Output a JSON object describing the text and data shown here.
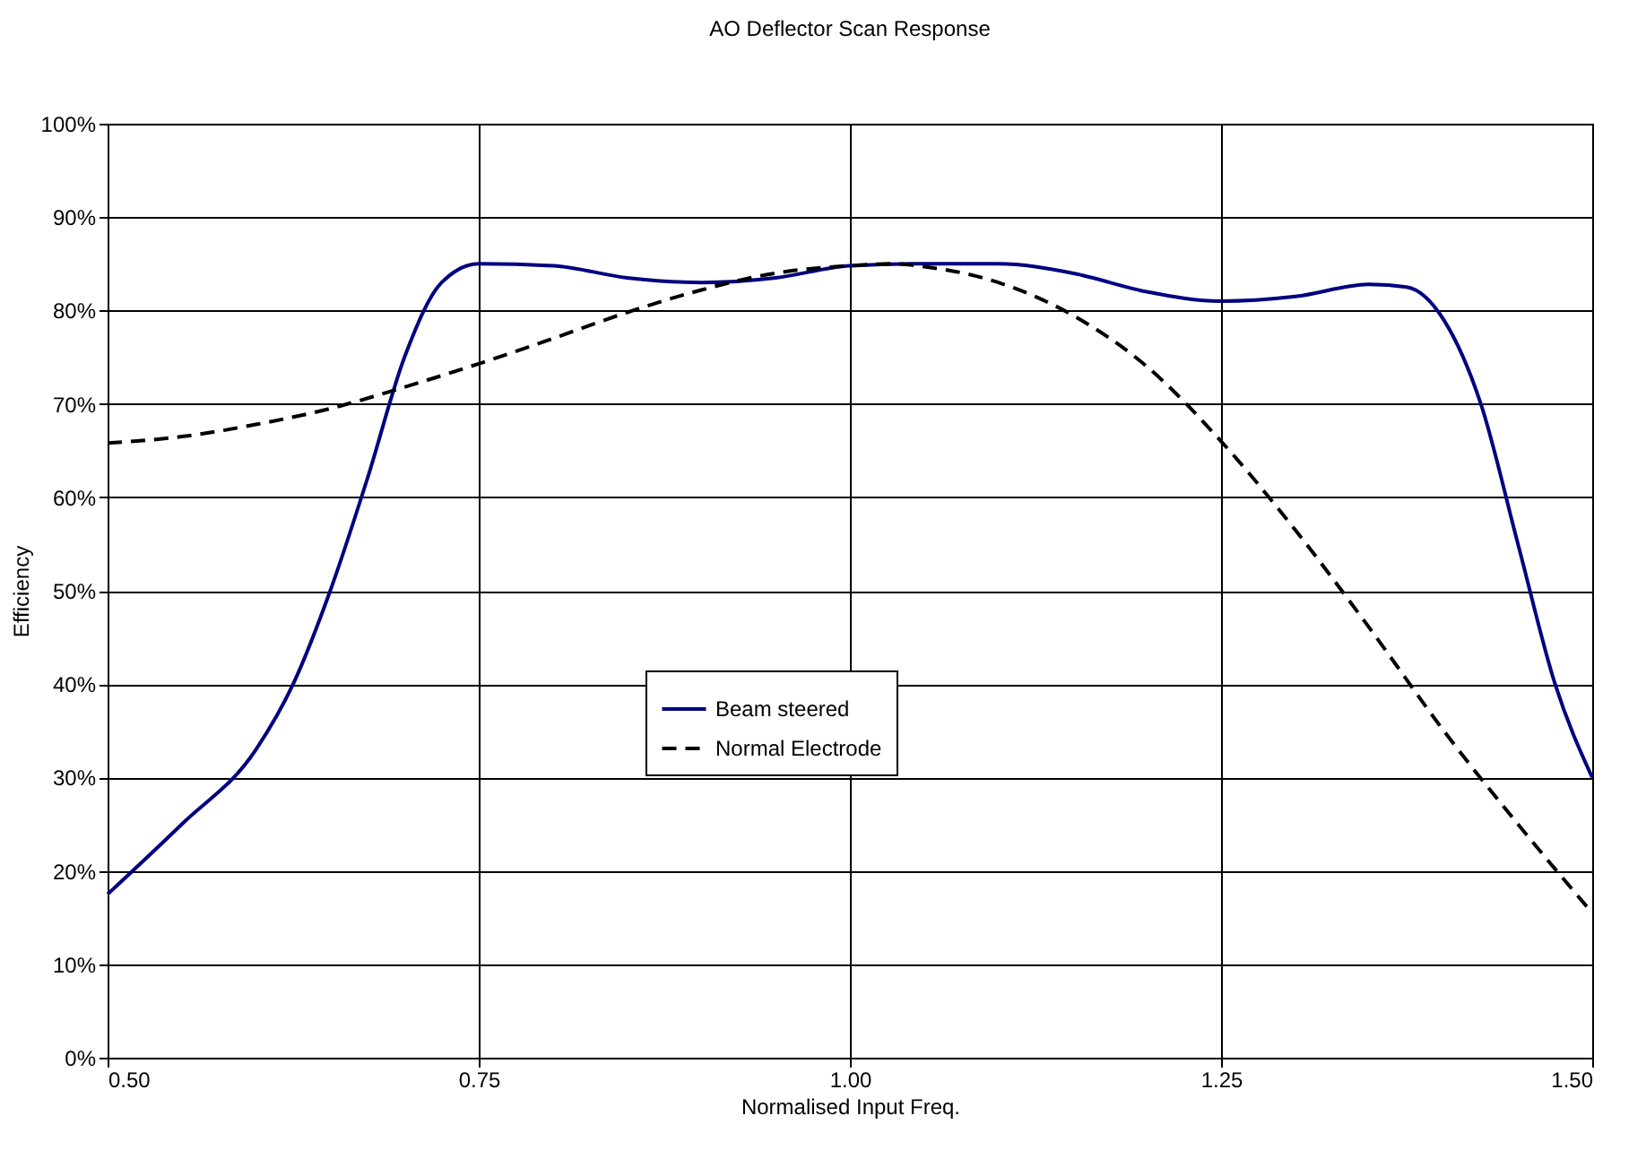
{
  "chart_data": {
    "type": "line",
    "title": "AO Deflector Scan Response",
    "xlabel": "Normalised Input Freq.",
    "ylabel": "Efficiency",
    "xlim": [
      0.5,
      1.5
    ],
    "xticks": [
      {
        "value": 0.5,
        "label": "0.50"
      },
      {
        "value": 0.75,
        "label": "0.75"
      },
      {
        "value": 1.0,
        "label": "1.00"
      },
      {
        "value": 1.25,
        "label": "1.25"
      },
      {
        "value": 1.5,
        "label": "1.50"
      }
    ],
    "ylim": [
      0,
      100
    ],
    "yticks": [
      {
        "value": 0,
        "label": "0%"
      },
      {
        "value": 10,
        "label": "10%"
      },
      {
        "value": 20,
        "label": "20%"
      },
      {
        "value": 30,
        "label": "30%"
      },
      {
        "value": 40,
        "label": "40%"
      },
      {
        "value": 50,
        "label": "50%"
      },
      {
        "value": 60,
        "label": "60%"
      },
      {
        "value": 70,
        "label": "70%"
      },
      {
        "value": 80,
        "label": "80%"
      },
      {
        "value": 90,
        "label": "90%"
      },
      {
        "value": 100,
        "label": "100%"
      }
    ],
    "grid": true,
    "legend": "center",
    "marker": "none",
    "series": [
      {
        "name": "Beam steered",
        "color": "#000080",
        "line_style": "solid",
        "x": [
          0.5,
          0.55,
          0.6,
          0.625,
          0.65,
          0.675,
          0.7,
          0.725,
          0.75,
          0.8,
          0.85,
          0.9,
          0.95,
          1.0,
          1.05,
          1.1,
          1.15,
          1.2,
          1.25,
          1.3,
          1.35,
          1.375,
          1.4,
          1.425,
          1.45,
          1.475,
          1.5
        ],
        "values": [
          17.5,
          25,
          33,
          40,
          50,
          62,
          75,
          83,
          85,
          84.8,
          83.5,
          83,
          83.5,
          84.8,
          85,
          85,
          84,
          82,
          81,
          81.5,
          82.8,
          82.5,
          79,
          70,
          55,
          40,
          30
        ]
      },
      {
        "name": "Normal Electrode",
        "color": "#000000",
        "line_style": "dashed",
        "x": [
          0.5,
          0.55,
          0.6,
          0.65,
          0.7,
          0.75,
          0.8,
          0.85,
          0.9,
          0.95,
          1.0,
          1.03,
          1.05,
          1.1,
          1.15,
          1.2,
          1.25,
          1.3,
          1.35,
          1.4,
          1.45,
          1.5
        ],
        "values": [
          65.8,
          66.5,
          67.8,
          69.5,
          71.8,
          74.3,
          77,
          79.8,
          82.2,
          84,
          84.8,
          85,
          84.7,
          83,
          79.5,
          74,
          66,
          56.5,
          46,
          35,
          25,
          15.5
        ]
      }
    ]
  }
}
